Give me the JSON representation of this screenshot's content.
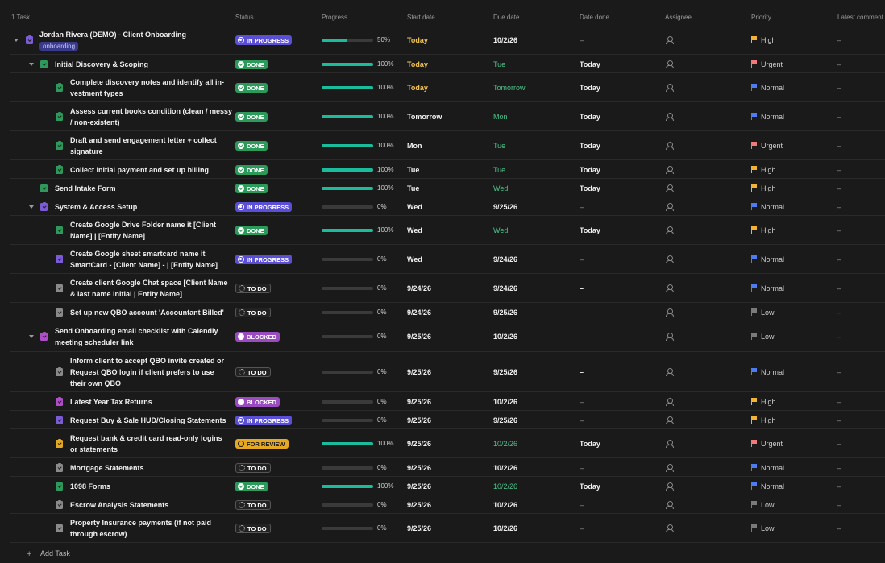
{
  "header": {
    "task_count": "1 Task",
    "columns": [
      "Status",
      "Progress",
      "Start date",
      "Due date",
      "Date done",
      "Assignee",
      "Priority",
      "Latest comment"
    ]
  },
  "colors": {
    "done": "#2d9a5c",
    "in_progress": "#5b4fd6",
    "to_do": "#222222",
    "blocked": "#9b4bc0",
    "for_review": "#e5a823",
    "today": "#f2c14e",
    "green_date": "#4cc38a",
    "progress_fill": "#1abc9c",
    "high": "#f2b233",
    "urgent": "#f07a7a",
    "normal": "#4d7cf2",
    "low": "#7a7a7a"
  },
  "add_task": "Add Task",
  "rows": [
    {
      "name_lines": [
        "Jordan Rivera (DEMO) - Client Onboarding"
      ],
      "subtasks": "4",
      "has_desc": true,
      "tag": "onboarding",
      "level": 0,
      "caret": true,
      "icon_color": "#7b5cd6",
      "status": "IN PROGRESS",
      "status_kind": "progress",
      "progress": 50,
      "pct": "50%",
      "start": "Today",
      "start_color": "today",
      "due": "10/2/26",
      "due_color": "white",
      "done": "–",
      "priority": "High",
      "priority_kind": "high",
      "comment": "–"
    },
    {
      "name_lines": [
        "Initial Discovery & Scoping"
      ],
      "subtasks": "4",
      "level": 1,
      "caret": true,
      "icon_color": "#2d9a5c",
      "status": "DONE",
      "status_kind": "done",
      "progress": 100,
      "pct": "100%",
      "start": "Today",
      "start_color": "today",
      "due": "Tue",
      "due_color": "green",
      "done": "Today",
      "priority": "Urgent",
      "priority_kind": "urgent",
      "comment": "–"
    },
    {
      "name_lines": [
        "Complete discovery notes and identify all in-",
        "vestment types"
      ],
      "level": 2,
      "icon_color": "#2d9a5c",
      "status": "DONE",
      "status_kind": "done",
      "progress": 100,
      "pct": "100%",
      "start": "Today",
      "start_color": "today",
      "due": "Tomorrow",
      "due_color": "green",
      "done": "Today",
      "priority": "Normal",
      "priority_kind": "normal",
      "comment": "–"
    },
    {
      "name_lines": [
        "Assess current books condition (clean / messy",
        "/ non-existent)"
      ],
      "level": 2,
      "icon_color": "#2d9a5c",
      "status": "DONE",
      "status_kind": "done",
      "progress": 100,
      "pct": "100%",
      "start": "Tomorrow",
      "start_color": "white",
      "due": "Mon",
      "due_color": "green",
      "done": "Today",
      "priority": "Normal",
      "priority_kind": "normal",
      "comment": "–"
    },
    {
      "name_lines": [
        "Draft and send engagement letter + collect",
        "signature"
      ],
      "level": 2,
      "icon_color": "#2d9a5c",
      "status": "DONE",
      "status_kind": "done",
      "progress": 100,
      "pct": "100%",
      "start": "Mon",
      "start_color": "white",
      "due": "Tue",
      "due_color": "green",
      "done": "Today",
      "priority": "Urgent",
      "priority_kind": "urgent",
      "comment": "–"
    },
    {
      "name_lines": [
        "Collect initial payment and set up billing"
      ],
      "has_desc": true,
      "level": 2,
      "icon_color": "#2d9a5c",
      "status": "DONE",
      "status_kind": "done",
      "progress": 100,
      "pct": "100%",
      "start": "Tue",
      "start_color": "white",
      "due": "Tue",
      "due_color": "green",
      "done": "Today",
      "priority": "High",
      "priority_kind": "high",
      "comment": "–"
    },
    {
      "name_lines": [
        "Send Intake Form"
      ],
      "level": 1,
      "icon_color": "#2d9a5c",
      "status": "DONE",
      "status_kind": "done",
      "progress": 100,
      "pct": "100%",
      "start": "Tue",
      "start_color": "white",
      "due": "Wed",
      "due_color": "green",
      "done": "Today",
      "priority": "High",
      "priority_kind": "high",
      "comment": "–"
    },
    {
      "name_lines": [
        "System & Access Setup"
      ],
      "subtasks": "4",
      "level": 1,
      "caret": true,
      "icon_color": "#7b5cd6",
      "status": "IN PROGRESS",
      "status_kind": "progress",
      "progress": 0,
      "pct": "0%",
      "start": "Wed",
      "start_color": "white",
      "due": "9/25/26",
      "due_color": "white",
      "done": "–",
      "priority": "Normal",
      "priority_kind": "normal",
      "comment": "–"
    },
    {
      "name_lines": [
        "Create Google Drive Folder name it [Client",
        "Name] | [Entity Name]"
      ],
      "level": 2,
      "icon_color": "#2d9a5c",
      "status": "DONE",
      "status_kind": "done",
      "progress": 100,
      "pct": "100%",
      "start": "Wed",
      "start_color": "white",
      "due": "Wed",
      "due_color": "green",
      "done": "Today",
      "priority": "High",
      "priority_kind": "high",
      "comment": "–"
    },
    {
      "name_lines": [
        "Create Google sheet smartcard name it",
        "SmartCard - [Client Name] - | [Entity Name]"
      ],
      "level": 2,
      "icon_color": "#7b5cd6",
      "status": "IN PROGRESS",
      "status_kind": "progress",
      "progress": 0,
      "pct": "0%",
      "start": "Wed",
      "start_color": "white",
      "due": "9/24/26",
      "due_color": "white",
      "done": "–",
      "priority": "Normal",
      "priority_kind": "normal",
      "comment": "–"
    },
    {
      "name_lines": [
        "Create client Google Chat space [Client Name",
        "& last name initial | Entity Name]"
      ],
      "level": 2,
      "icon_color": "#8a8a8a",
      "status": "TO DO",
      "status_kind": "todo",
      "progress": 0,
      "pct": "0%",
      "start": "9/24/26",
      "start_color": "white",
      "due": "9/24/26",
      "due_color": "white",
      "done": "–",
      "done_bold": true,
      "priority": "Normal",
      "priority_kind": "normal",
      "comment": "–"
    },
    {
      "name_lines": [
        "Set up new QBO account 'Accountant Billed'"
      ],
      "level": 2,
      "icon_color": "#8a8a8a",
      "status": "TO DO",
      "status_kind": "todo",
      "progress": 0,
      "pct": "0%",
      "start": "9/24/26",
      "start_color": "white",
      "due": "9/25/26",
      "due_color": "white",
      "done": "–",
      "done_bold": true,
      "priority": "Low",
      "priority_kind": "low",
      "comment": "–"
    },
    {
      "name_lines": [
        "Send Onboarding email checklist with Calendly",
        "meeting scheduler link"
      ],
      "subtasks": "8",
      "level": 1,
      "caret": true,
      "icon_color": "#b04ec9",
      "status": "BLOCKED",
      "status_kind": "blocked",
      "progress": 0,
      "pct": "0%",
      "start": "9/25/26",
      "start_color": "white",
      "due": "10/2/26",
      "due_color": "white",
      "done": "–",
      "done_bold": true,
      "priority": "Low",
      "priority_kind": "low",
      "comment": "–"
    },
    {
      "name_lines": [
        "Inform client to accept QBO invite created or",
        "Request QBO login if client prefers to use",
        "their own QBO"
      ],
      "level": 2,
      "icon_color": "#8a8a8a",
      "status": "TO DO",
      "status_kind": "todo",
      "progress": 0,
      "pct": "0%",
      "start": "9/25/26",
      "start_color": "white",
      "due": "9/25/26",
      "due_color": "white",
      "done": "–",
      "done_bold": true,
      "priority": "Normal",
      "priority_kind": "normal",
      "comment": "–"
    },
    {
      "name_lines": [
        "Latest Year Tax Returns"
      ],
      "has_desc": true,
      "level": 2,
      "icon_color": "#b04ec9",
      "status": "BLOCKED",
      "status_kind": "blocked",
      "progress": 0,
      "pct": "0%",
      "start": "9/25/26",
      "start_color": "white",
      "due": "10/2/26",
      "due_color": "white",
      "done": "–",
      "priority": "High",
      "priority_kind": "high",
      "comment": "–"
    },
    {
      "name_lines": [
        "Request Buy & Sale HUD/Closing Statements"
      ],
      "level": 2,
      "icon_color": "#7b5cd6",
      "status": "IN PROGRESS",
      "status_kind": "progress",
      "progress": 0,
      "pct": "0%",
      "start": "9/25/26",
      "start_color": "white",
      "due": "9/25/26",
      "due_color": "white",
      "done": "–",
      "priority": "High",
      "priority_kind": "high",
      "comment": "–"
    },
    {
      "name_lines": [
        "Request bank & credit card read-only logins",
        "or statements"
      ],
      "level": 2,
      "icon_color": "#e5a823",
      "status": "FOR REVIEW",
      "status_kind": "review",
      "progress": 100,
      "pct": "100%",
      "start": "9/25/26",
      "start_color": "white",
      "due": "10/2/26",
      "due_color": "green",
      "done": "Today",
      "priority": "Urgent",
      "priority_kind": "urgent",
      "comment": "–"
    },
    {
      "name_lines": [
        "Mortgage Statements"
      ],
      "level": 2,
      "icon_color": "#8a8a8a",
      "status": "TO DO",
      "status_kind": "todo",
      "progress": 0,
      "pct": "0%",
      "start": "9/25/26",
      "start_color": "white",
      "due": "10/2/26",
      "due_color": "white",
      "done": "–",
      "priority": "Normal",
      "priority_kind": "normal",
      "comment": "–"
    },
    {
      "name_lines": [
        "1098 Forms"
      ],
      "level": 2,
      "icon_color": "#2d9a5c",
      "status": "DONE",
      "status_kind": "done",
      "progress": 100,
      "pct": "100%",
      "start": "9/25/26",
      "start_color": "white",
      "due": "10/2/26",
      "due_color": "green",
      "done": "Today",
      "priority": "Normal",
      "priority_kind": "normal",
      "comment": "–"
    },
    {
      "name_lines": [
        "Escrow Analysis Statements"
      ],
      "level": 2,
      "icon_color": "#8a8a8a",
      "status": "TO DO",
      "status_kind": "todo",
      "progress": 0,
      "pct": "0%",
      "start": "9/25/26",
      "start_color": "white",
      "due": "10/2/26",
      "due_color": "white",
      "done": "–",
      "priority": "Low",
      "priority_kind": "low",
      "comment": "–"
    },
    {
      "name_lines": [
        "Property Insurance payments (if not paid",
        "through escrow)"
      ],
      "level": 2,
      "icon_color": "#8a8a8a",
      "status": "TO DO",
      "status_kind": "todo",
      "progress": 0,
      "pct": "0%",
      "start": "9/25/26",
      "start_color": "white",
      "due": "10/2/26",
      "due_color": "white",
      "done": "–",
      "priority": "Low",
      "priority_kind": "low",
      "comment": "–"
    }
  ]
}
